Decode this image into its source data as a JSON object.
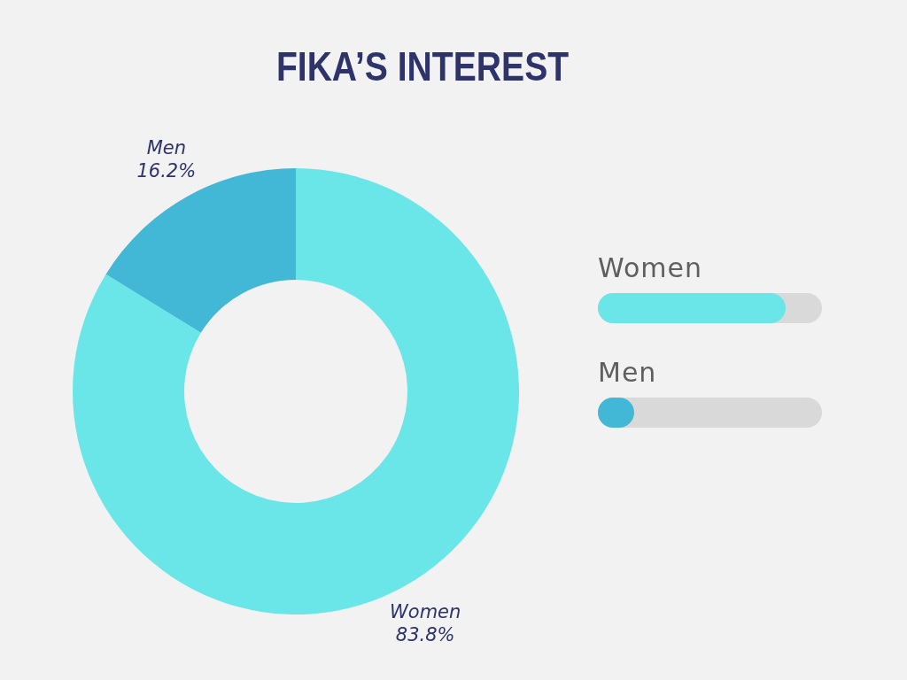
{
  "chart_data": {
    "type": "donut",
    "title": "FIKA’S INTEREST",
    "categories": [
      "Women",
      "Men"
    ],
    "values": [
      83.8,
      16.2
    ],
    "value_labels": [
      "83.8%",
      "16.2%"
    ],
    "colors": [
      "#6ae6e8",
      "#42b8d6"
    ]
  }
}
